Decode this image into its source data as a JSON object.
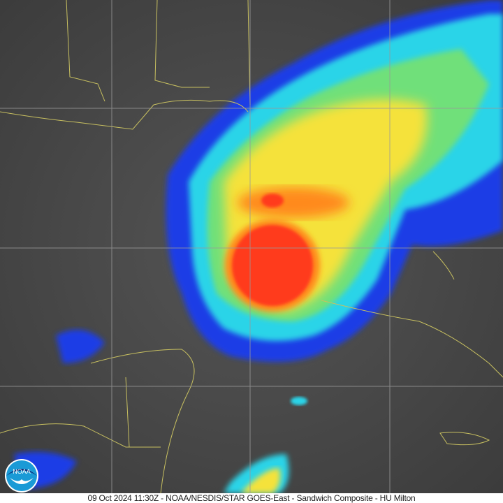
{
  "caption": "09 Oct 2024 11:30Z - NOAA/NESDIS/STAR GOES-East - Sandwich Composite - HU Milton",
  "logo": {
    "text": "NOAA",
    "color": "#1a9ad6"
  },
  "colors": {
    "background_gray": "#4a4a4a",
    "borders": "#c8c060",
    "grid": "#9a9a9a",
    "core": "#ff3a1e",
    "orange": "#ff8a1e",
    "yellow": "#f5e23a",
    "green": "#6fe07a",
    "cyan": "#2ad4e8",
    "blue": "#1a3de6"
  }
}
